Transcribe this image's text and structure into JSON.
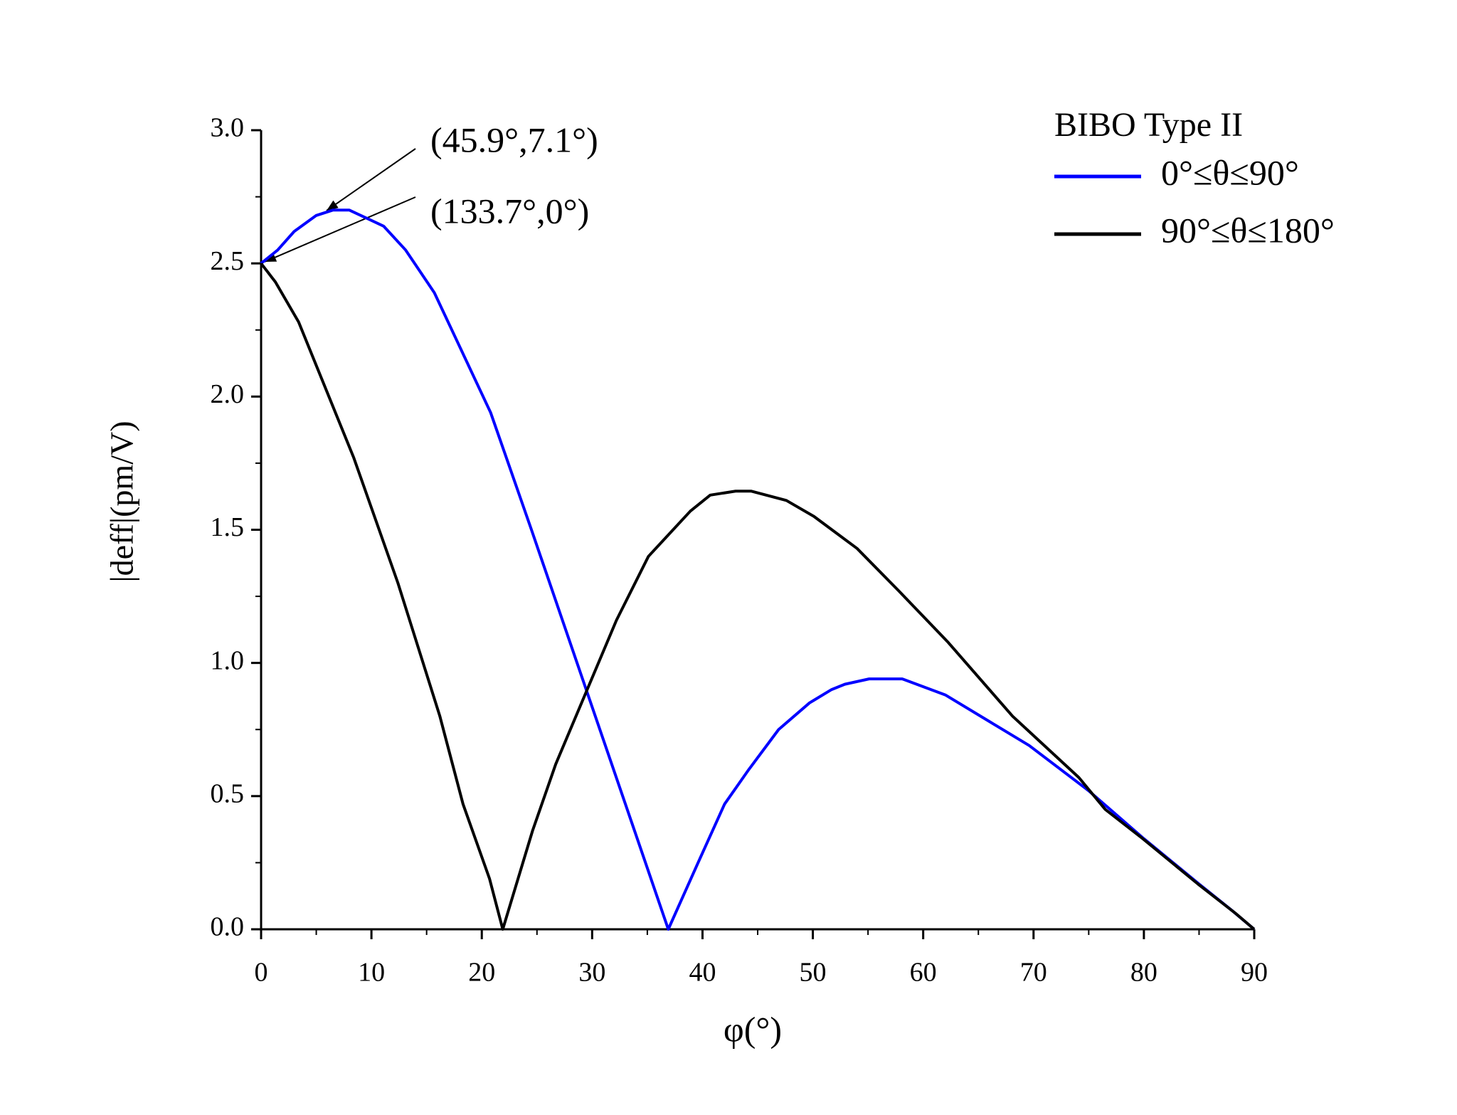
{
  "chart_data": {
    "type": "line",
    "xlabel": "φ(°)",
    "ylabel": "|deff|(pm/V)",
    "legend_title": "BIBO Type II",
    "annotations": [
      "(45.9°,7.1°)",
      "(133.7°,0°)"
    ],
    "xlim": [
      0,
      90
    ],
    "xticks": [
      0,
      10,
      20,
      30,
      40,
      50,
      60,
      70,
      80,
      90
    ],
    "ylim": [
      0,
      3
    ],
    "yticks": [
      {
        "value": 0,
        "label": "0.0"
      },
      0.5,
      {
        "value": 1,
        "label": "1.0"
      },
      1.5,
      {
        "value": 2,
        "label": "2.0"
      },
      2.5,
      {
        "value": 3,
        "label": "3.0"
      }
    ],
    "series": [
      {
        "name": "0°≤θ≤90°",
        "color": "#0000ff",
        "x": [
          0,
          1.5,
          3,
          5,
          6.5,
          8,
          11.1,
          13.1,
          15.7,
          20.8,
          24.5,
          36.9,
          39.6,
          42,
          44.2,
          46.9,
          49.7,
          51.7,
          52.9,
          55.1,
          58.1,
          62,
          66,
          69.6,
          75,
          80,
          85,
          88,
          90
        ],
        "values": [
          2.5,
          2.55,
          2.62,
          2.68,
          2.7,
          2.7,
          2.64,
          2.55,
          2.39,
          1.94,
          1.5,
          0,
          0.25,
          0.47,
          0.6,
          0.75,
          0.85,
          0.9,
          0.92,
          0.94,
          0.94,
          0.88,
          0.78,
          0.69,
          0.52,
          0.34,
          0.17,
          0.07,
          0
        ]
      },
      {
        "name": "90°≤θ≤180°",
        "color": "#000000",
        "x": [
          0,
          1.3,
          3.4,
          8.4,
          12.4,
          16.2,
          18.3,
          20.7,
          21.9,
          24.6,
          26.7,
          32.2,
          35.1,
          38.9,
          40.7,
          43,
          44.4,
          47.6,
          50.1,
          54,
          57.8,
          62.2,
          68.1,
          74.1,
          76.5,
          79.9,
          84.9,
          88.3,
          90
        ],
        "values": [
          2.5,
          2.43,
          2.28,
          1.77,
          1.3,
          0.8,
          0.47,
          0.19,
          0,
          0.37,
          0.62,
          1.16,
          1.4,
          1.57,
          1.63,
          1.645,
          1.645,
          1.61,
          1.55,
          1.43,
          1.27,
          1.08,
          0.8,
          0.57,
          0.45,
          0.34,
          0.17,
          0.06,
          0
        ]
      }
    ]
  }
}
